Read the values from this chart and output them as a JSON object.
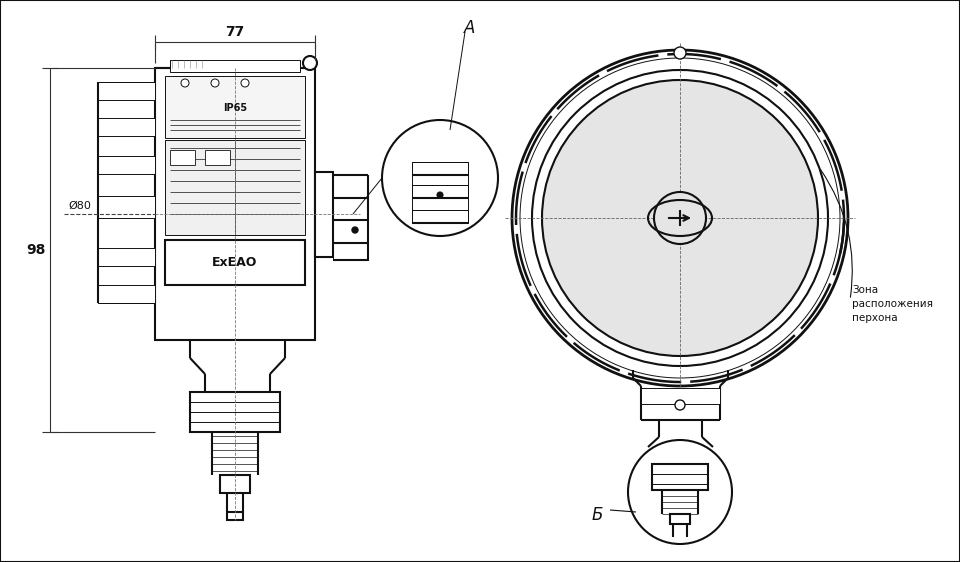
{
  "bg": "#f0f0f0",
  "lc": "#111111",
  "lw": 1.5,
  "lwt": 0.7,
  "lwd": 0.8,
  "label_A": "А",
  "label_B": "Б",
  "dim_77": "77",
  "dim_98": "98",
  "dim_d80": "Ø80",
  "label_IP65": "IP65",
  "label_ex": "ExЕАО",
  "zone_line1": "Зона",
  "zone_line2": "расположения",
  "zone_line3": "перхона"
}
